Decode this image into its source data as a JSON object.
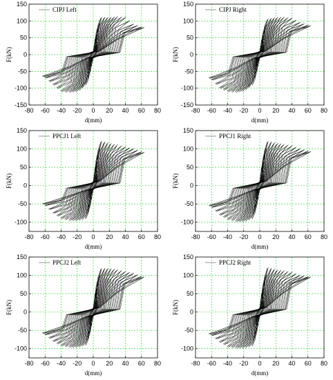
{
  "chart_data": [
    {
      "type": "line",
      "legend": "CIPJ Left",
      "xlabel": "d(mm)",
      "ylabel": "F(kN)",
      "xlim": [
        -80,
        80
      ],
      "ylim": [
        -150,
        150
      ],
      "xticks": [
        -80,
        -60,
        -40,
        -20,
        0,
        20,
        40,
        60,
        80
      ],
      "yticks": [
        -150,
        -100,
        -50,
        0,
        50,
        100,
        150
      ],
      "envelope": {
        "x": [
          -62,
          -50,
          -40,
          -30,
          -20,
          -10,
          -5,
          0,
          5,
          10,
          20,
          30,
          40,
          50,
          62
        ],
        "y": [
          -65,
          -90,
          -110,
          -112,
          -110,
          -90,
          -50,
          0,
          70,
          110,
          110,
          112,
          110,
          90,
          80
        ]
      },
      "legend_color": "#888888",
      "grid": true,
      "legend_position": "top-left"
    },
    {
      "type": "line",
      "legend": "CIPJ Right",
      "xlabel": "d(mm)",
      "ylabel": "F(kN)",
      "xlim": [
        -80,
        80
      ],
      "ylim": [
        -150,
        150
      ],
      "xticks": [
        -80,
        -60,
        -40,
        -20,
        0,
        20,
        40,
        60,
        80
      ],
      "yticks": [
        -150,
        -100,
        -50,
        0,
        50,
        100,
        150
      ],
      "envelope": {
        "x": [
          -62,
          -50,
          -40,
          -30,
          -20,
          -10,
          -5,
          0,
          5,
          10,
          20,
          30,
          40,
          50,
          62
        ],
        "y": [
          -70,
          -100,
          -110,
          -112,
          -108,
          -90,
          -50,
          0,
          65,
          105,
          110,
          110,
          108,
          95,
          85
        ]
      },
      "legend_color": "#888888",
      "grid": true,
      "legend_position": "top-left"
    },
    {
      "type": "line",
      "legend": "PPCJ1 Left",
      "xlabel": "d(mm)",
      "ylabel": "F(kN)",
      "xlim": [
        -80,
        80
      ],
      "ylim": [
        -125,
        150
      ],
      "xticks": [
        -80,
        -60,
        -40,
        -20,
        0,
        20,
        40,
        60,
        80
      ],
      "yticks": [
        -100,
        -50,
        0,
        50,
        100,
        150
      ],
      "envelope": {
        "x": [
          -62,
          -50,
          -40,
          -30,
          -20,
          -10,
          -5,
          0,
          5,
          10,
          20,
          30,
          40,
          50,
          62
        ],
        "y": [
          -50,
          -75,
          -90,
          -95,
          -95,
          -90,
          -55,
          0,
          75,
          120,
          115,
          110,
          105,
          100,
          90
        ]
      },
      "legend_color": "#888888",
      "grid": true,
      "legend_position": "top-left"
    },
    {
      "type": "line",
      "legend": "PPCJ1 Right",
      "xlabel": "d(mm)",
      "ylabel": "F(kN)",
      "xlim": [
        -80,
        80
      ],
      "ylim": [
        -125,
        150
      ],
      "xticks": [
        -80,
        -60,
        -40,
        -20,
        0,
        20,
        40,
        60,
        80
      ],
      "yticks": [
        -100,
        -50,
        0,
        50,
        100,
        150
      ],
      "envelope": {
        "x": [
          -62,
          -50,
          -40,
          -30,
          -20,
          -10,
          -5,
          0,
          5,
          10,
          20,
          30,
          40,
          50,
          62
        ],
        "y": [
          -55,
          -80,
          -92,
          -98,
          -98,
          -90,
          -55,
          0,
          75,
          120,
          115,
          112,
          108,
          100,
          92
        ]
      },
      "legend_color": "#888888",
      "grid": true,
      "legend_position": "top-left"
    },
    {
      "type": "line",
      "legend": "PPCJ2 Left",
      "xlabel": "d(mm)",
      "ylabel": "F(kN)",
      "xlim": [
        -80,
        80
      ],
      "ylim": [
        -125,
        150
      ],
      "xticks": [
        -80,
        -60,
        -40,
        -20,
        0,
        20,
        40,
        60,
        80
      ],
      "yticks": [
        -100,
        -50,
        0,
        50,
        100,
        150
      ],
      "envelope": {
        "x": [
          -62,
          -50,
          -40,
          -30,
          -20,
          -10,
          -5,
          0,
          5,
          10,
          20,
          30,
          40,
          50,
          62
        ],
        "y": [
          -58,
          -80,
          -92,
          -96,
          -96,
          -90,
          -55,
          0,
          75,
          118,
          118,
          115,
          110,
          105,
          95
        ]
      },
      "legend_color": "#888888",
      "grid": true,
      "legend_position": "top-left"
    },
    {
      "type": "line",
      "legend": "PPCJ2 Right",
      "xlabel": "d(mm)",
      "ylabel": "F(kN)",
      "xlim": [
        -80,
        80
      ],
      "ylim": [
        -125,
        150
      ],
      "xticks": [
        -80,
        -60,
        -40,
        -20,
        0,
        20,
        40,
        60,
        80
      ],
      "yticks": [
        -100,
        -50,
        0,
        50,
        100,
        150
      ],
      "envelope": {
        "x": [
          -62,
          -50,
          -40,
          -30,
          -20,
          -10,
          -5,
          0,
          5,
          10,
          20,
          30,
          40,
          50,
          62
        ],
        "y": [
          -60,
          -82,
          -95,
          -98,
          -98,
          -92,
          -55,
          0,
          75,
          120,
          115,
          112,
          108,
          100,
          95
        ]
      },
      "legend_color": "#888888",
      "grid": true,
      "legend_position": "top-left"
    }
  ]
}
